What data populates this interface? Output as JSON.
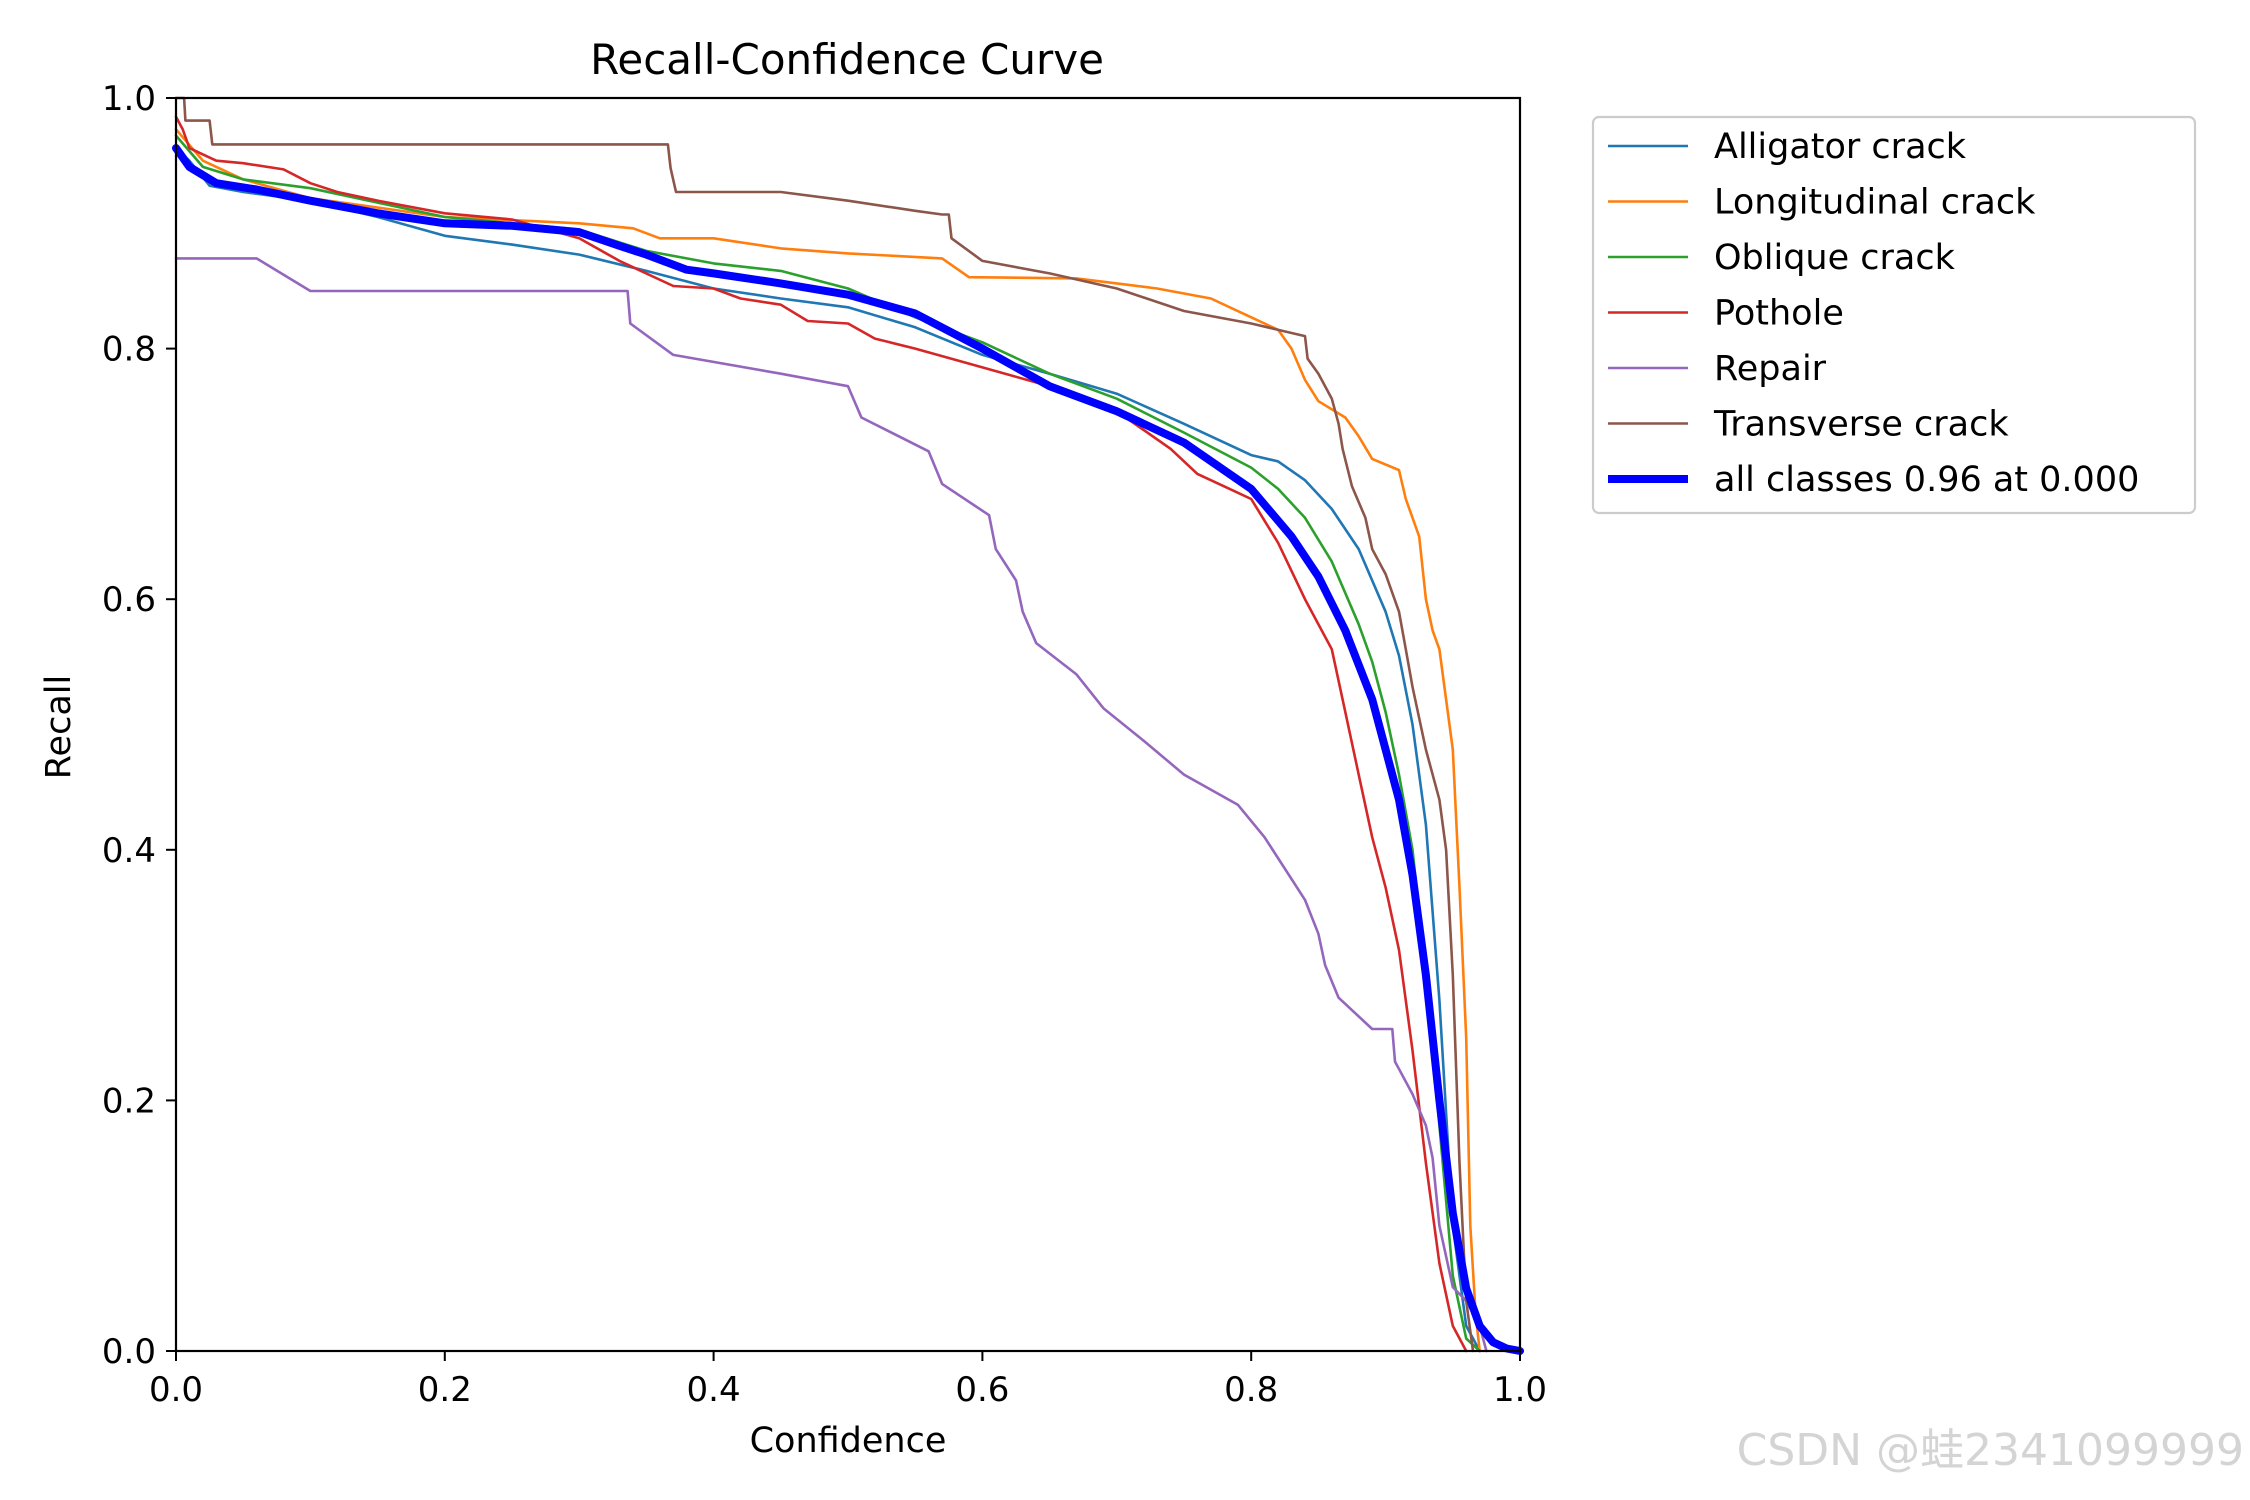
{
  "chart_data": {
    "type": "line",
    "title": "Recall-Confidence Curve",
    "xlabel": "Confidence",
    "ylabel": "Recall",
    "xlim": [
      0.0,
      1.0
    ],
    "ylim": [
      0.0,
      1.0
    ],
    "xticks": [
      "0.0",
      "0.2",
      "0.4",
      "0.6",
      "0.8",
      "1.0"
    ],
    "yticks": [
      "0.0",
      "0.2",
      "0.4",
      "0.6",
      "0.8",
      "1.0"
    ],
    "legend_position": "outside-top-right",
    "grid": false,
    "series": [
      {
        "name": "Alligator crack",
        "color": "#1f77b4",
        "width": "thin",
        "points": [
          [
            0.0,
            0.96
          ],
          [
            0.01,
            0.95
          ],
          [
            0.025,
            0.93
          ],
          [
            0.05,
            0.925
          ],
          [
            0.1,
            0.918
          ],
          [
            0.15,
            0.905
          ],
          [
            0.2,
            0.89
          ],
          [
            0.25,
            0.883
          ],
          [
            0.3,
            0.875
          ],
          [
            0.35,
            0.862
          ],
          [
            0.4,
            0.848
          ],
          [
            0.45,
            0.84
          ],
          [
            0.5,
            0.833
          ],
          [
            0.55,
            0.817
          ],
          [
            0.6,
            0.795
          ],
          [
            0.65,
            0.78
          ],
          [
            0.7,
            0.764
          ],
          [
            0.75,
            0.74
          ],
          [
            0.8,
            0.715
          ],
          [
            0.82,
            0.71
          ],
          [
            0.84,
            0.695
          ],
          [
            0.86,
            0.672
          ],
          [
            0.88,
            0.64
          ],
          [
            0.9,
            0.59
          ],
          [
            0.91,
            0.555
          ],
          [
            0.92,
            0.5
          ],
          [
            0.93,
            0.42
          ],
          [
            0.94,
            0.28
          ],
          [
            0.95,
            0.1
          ],
          [
            0.96,
            0.02
          ],
          [
            0.97,
            0.0
          ]
        ]
      },
      {
        "name": "Longitudinal crack",
        "color": "#ff7f0e",
        "width": "thin",
        "points": [
          [
            0.0,
            0.975
          ],
          [
            0.02,
            0.95
          ],
          [
            0.05,
            0.935
          ],
          [
            0.1,
            0.92
          ],
          [
            0.2,
            0.905
          ],
          [
            0.3,
            0.9
          ],
          [
            0.34,
            0.896
          ],
          [
            0.36,
            0.888
          ],
          [
            0.4,
            0.888
          ],
          [
            0.45,
            0.88
          ],
          [
            0.5,
            0.876
          ],
          [
            0.57,
            0.872
          ],
          [
            0.59,
            0.857
          ],
          [
            0.67,
            0.856
          ],
          [
            0.73,
            0.848
          ],
          [
            0.77,
            0.84
          ],
          [
            0.8,
            0.825
          ],
          [
            0.82,
            0.815
          ],
          [
            0.83,
            0.8
          ],
          [
            0.84,
            0.775
          ],
          [
            0.85,
            0.758
          ],
          [
            0.87,
            0.745
          ],
          [
            0.88,
            0.73
          ],
          [
            0.89,
            0.712
          ],
          [
            0.91,
            0.703
          ],
          [
            0.915,
            0.68
          ],
          [
            0.925,
            0.65
          ],
          [
            0.93,
            0.6
          ],
          [
            0.935,
            0.575
          ],
          [
            0.94,
            0.56
          ],
          [
            0.945,
            0.52
          ],
          [
            0.95,
            0.48
          ],
          [
            0.955,
            0.37
          ],
          [
            0.96,
            0.25
          ],
          [
            0.963,
            0.1
          ],
          [
            0.967,
            0.03
          ],
          [
            0.97,
            0.0
          ]
        ]
      },
      {
        "name": "Oblique crack",
        "color": "#2ca02c",
        "width": "thin",
        "points": [
          [
            0.0,
            0.97
          ],
          [
            0.02,
            0.945
          ],
          [
            0.05,
            0.935
          ],
          [
            0.1,
            0.928
          ],
          [
            0.2,
            0.905
          ],
          [
            0.3,
            0.895
          ],
          [
            0.35,
            0.878
          ],
          [
            0.4,
            0.868
          ],
          [
            0.45,
            0.862
          ],
          [
            0.5,
            0.848
          ],
          [
            0.55,
            0.825
          ],
          [
            0.6,
            0.805
          ],
          [
            0.65,
            0.78
          ],
          [
            0.7,
            0.76
          ],
          [
            0.75,
            0.733
          ],
          [
            0.8,
            0.705
          ],
          [
            0.82,
            0.688
          ],
          [
            0.84,
            0.665
          ],
          [
            0.86,
            0.63
          ],
          [
            0.88,
            0.58
          ],
          [
            0.89,
            0.55
          ],
          [
            0.9,
            0.51
          ],
          [
            0.91,
            0.46
          ],
          [
            0.92,
            0.4
          ],
          [
            0.93,
            0.3
          ],
          [
            0.94,
            0.18
          ],
          [
            0.95,
            0.06
          ],
          [
            0.96,
            0.01
          ],
          [
            0.97,
            0.0
          ]
        ]
      },
      {
        "name": "Pothole",
        "color": "#d62728",
        "width": "thin",
        "points": [
          [
            0.0,
            0.985
          ],
          [
            0.005,
            0.975
          ],
          [
            0.01,
            0.96
          ],
          [
            0.02,
            0.955
          ],
          [
            0.03,
            0.95
          ],
          [
            0.05,
            0.948
          ],
          [
            0.08,
            0.943
          ],
          [
            0.1,
            0.932
          ],
          [
            0.12,
            0.925
          ],
          [
            0.15,
            0.918
          ],
          [
            0.2,
            0.908
          ],
          [
            0.25,
            0.903
          ],
          [
            0.3,
            0.888
          ],
          [
            0.33,
            0.87
          ],
          [
            0.37,
            0.85
          ],
          [
            0.4,
            0.848
          ],
          [
            0.42,
            0.84
          ],
          [
            0.45,
            0.835
          ],
          [
            0.47,
            0.822
          ],
          [
            0.5,
            0.82
          ],
          [
            0.52,
            0.808
          ],
          [
            0.55,
            0.8
          ],
          [
            0.6,
            0.785
          ],
          [
            0.65,
            0.77
          ],
          [
            0.7,
            0.75
          ],
          [
            0.72,
            0.735
          ],
          [
            0.74,
            0.72
          ],
          [
            0.76,
            0.7
          ],
          [
            0.78,
            0.69
          ],
          [
            0.8,
            0.68
          ],
          [
            0.82,
            0.645
          ],
          [
            0.84,
            0.6
          ],
          [
            0.86,
            0.56
          ],
          [
            0.87,
            0.51
          ],
          [
            0.88,
            0.46
          ],
          [
            0.89,
            0.41
          ],
          [
            0.9,
            0.37
          ],
          [
            0.91,
            0.32
          ],
          [
            0.92,
            0.24
          ],
          [
            0.93,
            0.15
          ],
          [
            0.94,
            0.07
          ],
          [
            0.95,
            0.02
          ],
          [
            0.96,
            0.0
          ]
        ]
      },
      {
        "name": "Repair",
        "color": "#9467bd",
        "width": "thin",
        "points": [
          [
            0.0,
            0.872
          ],
          [
            0.06,
            0.872
          ],
          [
            0.1,
            0.846
          ],
          [
            0.2,
            0.846
          ],
          [
            0.3,
            0.846
          ],
          [
            0.336,
            0.846
          ],
          [
            0.338,
            0.82
          ],
          [
            0.37,
            0.795
          ],
          [
            0.45,
            0.78
          ],
          [
            0.5,
            0.77
          ],
          [
            0.51,
            0.745
          ],
          [
            0.56,
            0.718
          ],
          [
            0.57,
            0.692
          ],
          [
            0.605,
            0.667
          ],
          [
            0.61,
            0.64
          ],
          [
            0.625,
            0.615
          ],
          [
            0.63,
            0.59
          ],
          [
            0.64,
            0.565
          ],
          [
            0.67,
            0.54
          ],
          [
            0.69,
            0.513
          ],
          [
            0.72,
            0.487
          ],
          [
            0.75,
            0.46
          ],
          [
            0.79,
            0.436
          ],
          [
            0.81,
            0.41
          ],
          [
            0.84,
            0.36
          ],
          [
            0.85,
            0.333
          ],
          [
            0.855,
            0.308
          ],
          [
            0.865,
            0.282
          ],
          [
            0.89,
            0.257
          ],
          [
            0.905,
            0.257
          ],
          [
            0.907,
            0.231
          ],
          [
            0.92,
            0.205
          ],
          [
            0.93,
            0.18
          ],
          [
            0.935,
            0.154
          ],
          [
            0.94,
            0.1
          ],
          [
            0.95,
            0.051
          ],
          [
            0.96,
            0.04
          ],
          [
            0.97,
            0.02
          ],
          [
            0.975,
            0.0
          ]
        ]
      },
      {
        "name": "Transverse crack",
        "color": "#8c564b",
        "width": "thin",
        "points": [
          [
            0.0,
            1.0
          ],
          [
            0.006,
            1.0
          ],
          [
            0.007,
            0.982
          ],
          [
            0.025,
            0.982
          ],
          [
            0.027,
            0.963
          ],
          [
            0.1,
            0.963
          ],
          [
            0.2,
            0.963
          ],
          [
            0.3,
            0.963
          ],
          [
            0.366,
            0.963
          ],
          [
            0.368,
            0.944
          ],
          [
            0.372,
            0.925
          ],
          [
            0.4,
            0.925
          ],
          [
            0.45,
            0.925
          ],
          [
            0.5,
            0.918
          ],
          [
            0.55,
            0.91
          ],
          [
            0.57,
            0.907
          ],
          [
            0.575,
            0.907
          ],
          [
            0.577,
            0.888
          ],
          [
            0.6,
            0.87
          ],
          [
            0.65,
            0.86
          ],
          [
            0.7,
            0.848
          ],
          [
            0.75,
            0.83
          ],
          [
            0.8,
            0.82
          ],
          [
            0.84,
            0.81
          ],
          [
            0.842,
            0.792
          ],
          [
            0.85,
            0.78
          ],
          [
            0.86,
            0.76
          ],
          [
            0.865,
            0.74
          ],
          [
            0.868,
            0.72
          ],
          [
            0.875,
            0.69
          ],
          [
            0.885,
            0.665
          ],
          [
            0.89,
            0.64
          ],
          [
            0.9,
            0.62
          ],
          [
            0.91,
            0.59
          ],
          [
            0.915,
            0.56
          ],
          [
            0.92,
            0.53
          ],
          [
            0.93,
            0.48
          ],
          [
            0.94,
            0.44
          ],
          [
            0.945,
            0.4
          ],
          [
            0.95,
            0.3
          ],
          [
            0.955,
            0.15
          ],
          [
            0.96,
            0.04
          ],
          [
            0.965,
            0.0
          ]
        ]
      },
      {
        "name": "all classes 0.96 at 0.000",
        "color": "#0000ff",
        "width": "thick",
        "points": [
          [
            0.0,
            0.96
          ],
          [
            0.01,
            0.945
          ],
          [
            0.03,
            0.932
          ],
          [
            0.06,
            0.927
          ],
          [
            0.1,
            0.918
          ],
          [
            0.15,
            0.908
          ],
          [
            0.2,
            0.9
          ],
          [
            0.25,
            0.898
          ],
          [
            0.3,
            0.893
          ],
          [
            0.33,
            0.882
          ],
          [
            0.35,
            0.875
          ],
          [
            0.38,
            0.863
          ],
          [
            0.4,
            0.86
          ],
          [
            0.45,
            0.852
          ],
          [
            0.5,
            0.843
          ],
          [
            0.55,
            0.828
          ],
          [
            0.6,
            0.8
          ],
          [
            0.65,
            0.77
          ],
          [
            0.7,
            0.75
          ],
          [
            0.75,
            0.725
          ],
          [
            0.8,
            0.688
          ],
          [
            0.83,
            0.65
          ],
          [
            0.85,
            0.618
          ],
          [
            0.87,
            0.575
          ],
          [
            0.89,
            0.52
          ],
          [
            0.91,
            0.44
          ],
          [
            0.92,
            0.38
          ],
          [
            0.93,
            0.3
          ],
          [
            0.94,
            0.2
          ],
          [
            0.95,
            0.11
          ],
          [
            0.96,
            0.05
          ],
          [
            0.97,
            0.02
          ],
          [
            0.98,
            0.007
          ],
          [
            0.99,
            0.002
          ],
          [
            1.0,
            0.0
          ]
        ]
      }
    ]
  },
  "watermark": "CSDN @蛙2341099999"
}
